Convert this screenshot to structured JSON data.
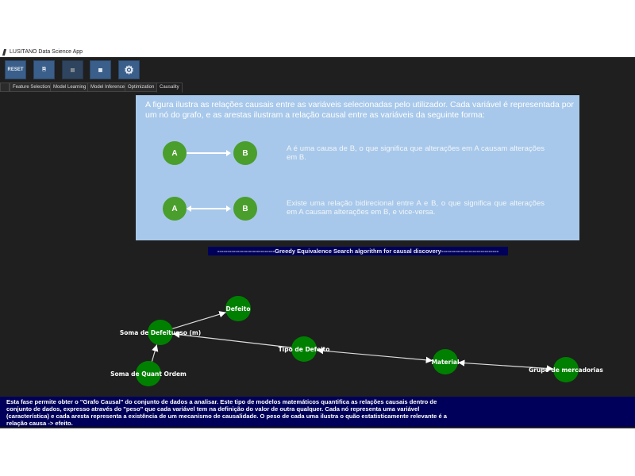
{
  "window": {
    "title": "LUSITANO Data Science App"
  },
  "toolbar": [
    {
      "name": "reset",
      "label": "RESET"
    },
    {
      "name": "load-data",
      "label": ""
    },
    {
      "name": "save",
      "label": ""
    },
    {
      "name": "network",
      "label": ""
    },
    {
      "name": "settings",
      "label": ""
    }
  ],
  "tabs": [
    {
      "label": "Feature Selection"
    },
    {
      "label": "Model Learning"
    },
    {
      "label": "Model Inference"
    },
    {
      "label": "Optimization"
    },
    {
      "label": "Causality",
      "active": true
    }
  ],
  "info": {
    "intro": "A figura ilustra as relações causais entre as variáveis selecionadas pelo utilizador. Cada variável é representada por um nó do grafo, e as arestas ilustram a relação causal entre as variáveis da seguinte forma:",
    "node_a": "A",
    "node_b": "B",
    "unidirectional": "A é uma causa de B, o que significa que alterações em A causam alterações em B.",
    "bidirectional": "Existe uma relação bidirecional entre A e B, o que significa que alterações em A causam alterações em B, e vice-versa."
  },
  "banner": "-----------------------------Greedy Equivalence Search algorithm for causal discovery-----------------------------",
  "graph": {
    "node_color": "#008000",
    "nodes": [
      {
        "id": "defeito",
        "label": "Defeito"
      },
      {
        "id": "defeituoso",
        "label": "Soma de Defeituoso (m)"
      },
      {
        "id": "quant",
        "label": "Soma de Quant Ordem"
      },
      {
        "id": "tipo",
        "label": "Tipo de Defeito"
      },
      {
        "id": "material",
        "label": "Material"
      },
      {
        "id": "grupo",
        "label": "Grupo de mercadorias"
      }
    ],
    "edges": [
      {
        "from": "defeituoso",
        "to": "defeito"
      },
      {
        "from": "quant",
        "to": "defeituoso"
      },
      {
        "from": "tipo",
        "to": "defeituoso"
      },
      {
        "from": "tipo",
        "to": "material",
        "bidirectional": true
      },
      {
        "from": "material",
        "to": "grupo",
        "bidirectional": true
      }
    ]
  },
  "footer": "Esta fase permite obter o \"Grafo Causal\" do conjunto de dados a analisar. Este tipo de modelos matemáticos quantifica as relações causais dentro de conjunto de dados, expresso através do \"peso\" que cada variável tem na definição do valor de outra qualquer. Cada nó representa uma variável (característica) e cada aresta representa a existência de um mecanismo de causalidade. O peso de cada uma ilustra o quão estatisticamente relevante é a relação causa -> efeito."
}
